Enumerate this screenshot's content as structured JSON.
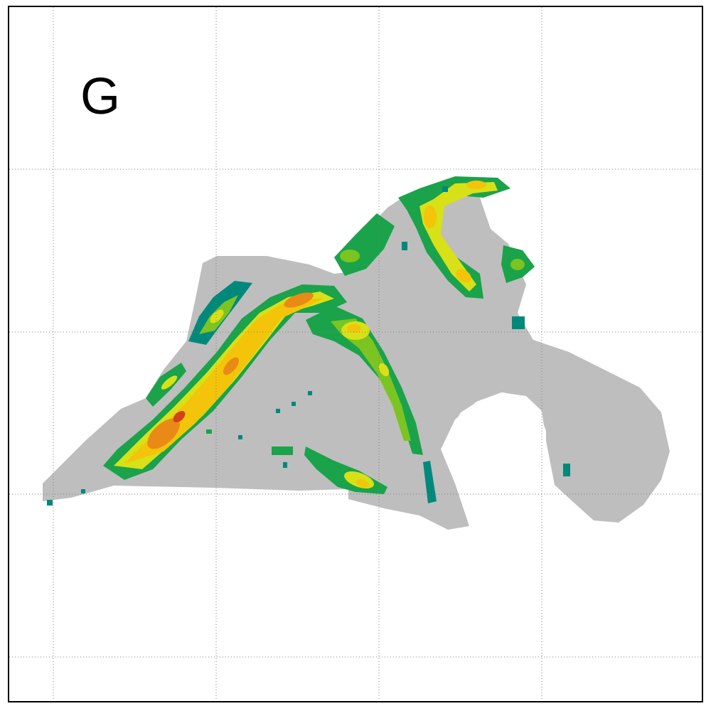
{
  "panel": {
    "label": "G"
  },
  "colors": {
    "background": "#ffffff",
    "study_area": "#bebebe",
    "frame": "#000000",
    "grid": "#7f7f7f",
    "density_ramp": [
      "#00897b",
      "#1aa34a",
      "#7cc421",
      "#d8e018",
      "#f3c40a",
      "#e98a16",
      "#d2421a"
    ]
  },
  "map": {
    "grid": true,
    "grid_style": "dotted",
    "legend": "none",
    "layers": [
      "study-area",
      "density-hotspots"
    ]
  }
}
